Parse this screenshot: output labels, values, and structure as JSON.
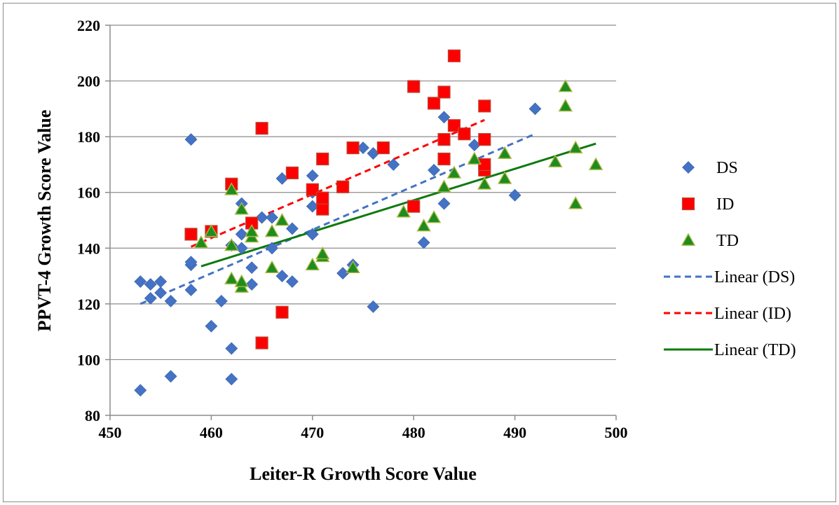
{
  "chart_data": {
    "type": "scatter",
    "xlabel": "Leiter-R Growth Score Value",
    "ylabel": "PPVT-4 Growth Score Value",
    "xlim": [
      450,
      500
    ],
    "ylim": [
      80,
      220
    ],
    "xticks": [
      450,
      460,
      470,
      480,
      490,
      500
    ],
    "yticks": [
      80,
      100,
      120,
      140,
      160,
      180,
      200,
      220
    ],
    "grid": "horizontal",
    "legend": "right",
    "series": [
      {
        "name": "DS",
        "marker": "diamond",
        "color": "#4472C4",
        "points": [
          [
            453,
            89
          ],
          [
            453,
            128
          ],
          [
            454,
            122
          ],
          [
            454,
            127
          ],
          [
            455,
            124
          ],
          [
            455,
            128
          ],
          [
            456,
            94
          ],
          [
            456,
            121
          ],
          [
            458,
            125
          ],
          [
            458,
            134
          ],
          [
            458,
            135
          ],
          [
            458,
            179
          ],
          [
            460,
            112
          ],
          [
            461,
            121
          ],
          [
            462,
            93
          ],
          [
            462,
            104
          ],
          [
            462,
            141
          ],
          [
            463,
            140
          ],
          [
            463,
            145
          ],
          [
            463,
            156
          ],
          [
            464,
            127
          ],
          [
            464,
            133
          ],
          [
            465,
            151
          ],
          [
            466,
            140
          ],
          [
            466,
            151
          ],
          [
            467,
            130
          ],
          [
            467,
            165
          ],
          [
            468,
            128
          ],
          [
            468,
            147
          ],
          [
            470,
            145
          ],
          [
            470,
            155
          ],
          [
            470,
            160
          ],
          [
            470,
            166
          ],
          [
            473,
            131
          ],
          [
            474,
            134
          ],
          [
            475,
            176
          ],
          [
            476,
            119
          ],
          [
            476,
            174
          ],
          [
            478,
            170
          ],
          [
            481,
            142
          ],
          [
            482,
            168
          ],
          [
            483,
            156
          ],
          [
            483,
            187
          ],
          [
            486,
            177
          ],
          [
            490,
            159
          ],
          [
            492,
            190
          ]
        ]
      },
      {
        "name": "ID",
        "marker": "square",
        "color": "#FF0000",
        "points": [
          [
            458,
            145
          ],
          [
            460,
            146
          ],
          [
            462,
            163
          ],
          [
            464,
            149
          ],
          [
            465,
            106
          ],
          [
            465,
            183
          ],
          [
            467,
            117
          ],
          [
            468,
            167
          ],
          [
            470,
            161
          ],
          [
            471,
            154
          ],
          [
            471,
            158
          ],
          [
            471,
            172
          ],
          [
            473,
            162
          ],
          [
            474,
            176
          ],
          [
            477,
            176
          ],
          [
            480,
            155
          ],
          [
            480,
            198
          ],
          [
            482,
            192
          ],
          [
            483,
            172
          ],
          [
            483,
            179
          ],
          [
            483,
            196
          ],
          [
            484,
            184
          ],
          [
            484,
            209
          ],
          [
            485,
            181
          ],
          [
            487,
            168
          ],
          [
            487,
            170
          ],
          [
            487,
            179
          ],
          [
            487,
            191
          ]
        ]
      },
      {
        "name": "TD",
        "marker": "triangle",
        "color": "#1E8C1E",
        "points": [
          [
            459,
            142
          ],
          [
            460,
            146
          ],
          [
            462,
            129
          ],
          [
            462,
            141
          ],
          [
            462,
            161
          ],
          [
            463,
            126
          ],
          [
            463,
            128
          ],
          [
            463,
            154
          ],
          [
            464,
            144
          ],
          [
            464,
            146
          ],
          [
            466,
            133
          ],
          [
            466,
            146
          ],
          [
            467,
            150
          ],
          [
            470,
            134
          ],
          [
            471,
            137
          ],
          [
            471,
            138
          ],
          [
            474,
            133
          ],
          [
            479,
            153
          ],
          [
            481,
            148
          ],
          [
            482,
            151
          ],
          [
            483,
            162
          ],
          [
            484,
            167
          ],
          [
            486,
            172
          ],
          [
            487,
            163
          ],
          [
            489,
            165
          ],
          [
            489,
            174
          ],
          [
            494,
            171
          ],
          [
            495,
            191
          ],
          [
            495,
            198
          ],
          [
            496,
            156
          ],
          [
            496,
            176
          ],
          [
            498,
            170
          ]
        ]
      }
    ],
    "trendlines": [
      {
        "name": "Linear (DS)",
        "style": "dashed",
        "color": "#4472C4",
        "x": [
          453,
          492
        ],
        "y": [
          120,
          181
        ]
      },
      {
        "name": "Linear (ID)",
        "style": "dashed",
        "color": "#FF0000",
        "x": [
          458,
          487
        ],
        "y": [
          140.5,
          186
        ]
      },
      {
        "name": "Linear (TD)",
        "style": "solid",
        "color": "#0E7A0E",
        "x": [
          459,
          498
        ],
        "y": [
          133.5,
          177.5
        ]
      }
    ]
  }
}
